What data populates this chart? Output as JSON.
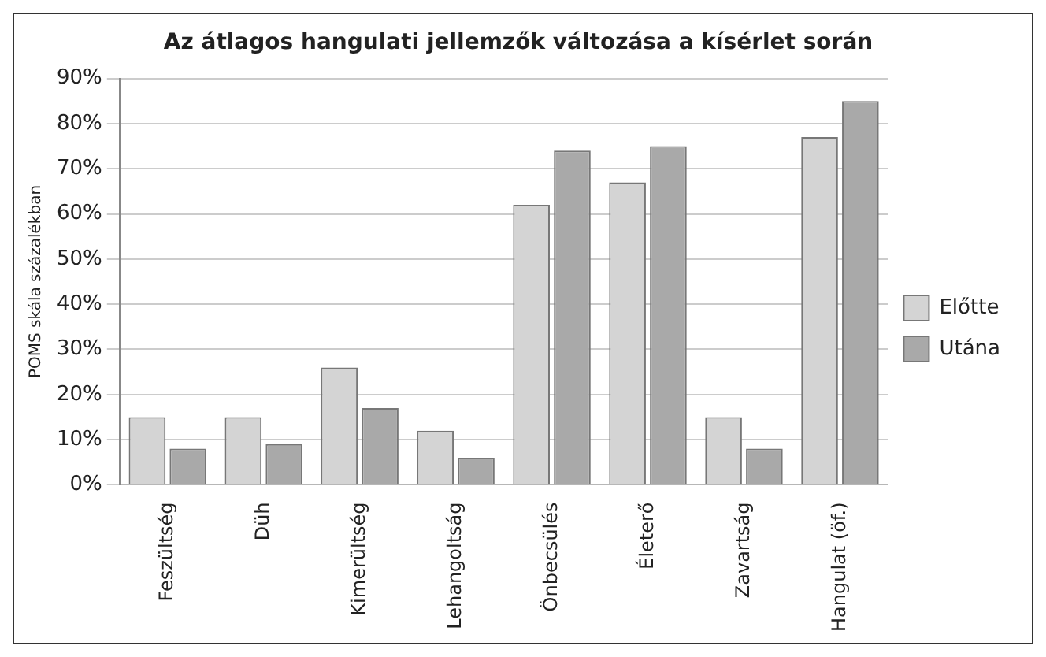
{
  "chart_data": {
    "type": "bar",
    "title": "Az átlagos hangulati jellemzők változása a kísérlet során",
    "ylabel": "POMS skála százalékban",
    "categories": [
      "Feszültség",
      "Düh",
      "Kimerültség",
      "Lehangoltság",
      "Önbecsülés",
      "Életerő",
      "Zavartság",
      "Hangulat (öf.)"
    ],
    "series": [
      {
        "name": "Előtte",
        "color": "#d4d4d4",
        "values": [
          15,
          15,
          26,
          12,
          62,
          67,
          15,
          77
        ]
      },
      {
        "name": "Utána",
        "color": "#a9a9a9",
        "values": [
          8,
          9,
          17,
          6,
          74,
          75,
          8,
          85
        ]
      }
    ],
    "ylim": [
      0,
      90
    ],
    "yticks": [
      {
        "value": 0,
        "label": "0%"
      },
      {
        "value": 10,
        "label": "10%"
      },
      {
        "value": 20,
        "label": "20%"
      },
      {
        "value": 30,
        "label": "30%"
      },
      {
        "value": 40,
        "label": "40%"
      },
      {
        "value": 50,
        "label": "50%"
      },
      {
        "value": 60,
        "label": "60%"
      },
      {
        "value": 70,
        "label": "70%"
      },
      {
        "value": 80,
        "label": "80%"
      },
      {
        "value": 90,
        "label": "90%"
      }
    ],
    "grid": "y",
    "legend": "right"
  }
}
